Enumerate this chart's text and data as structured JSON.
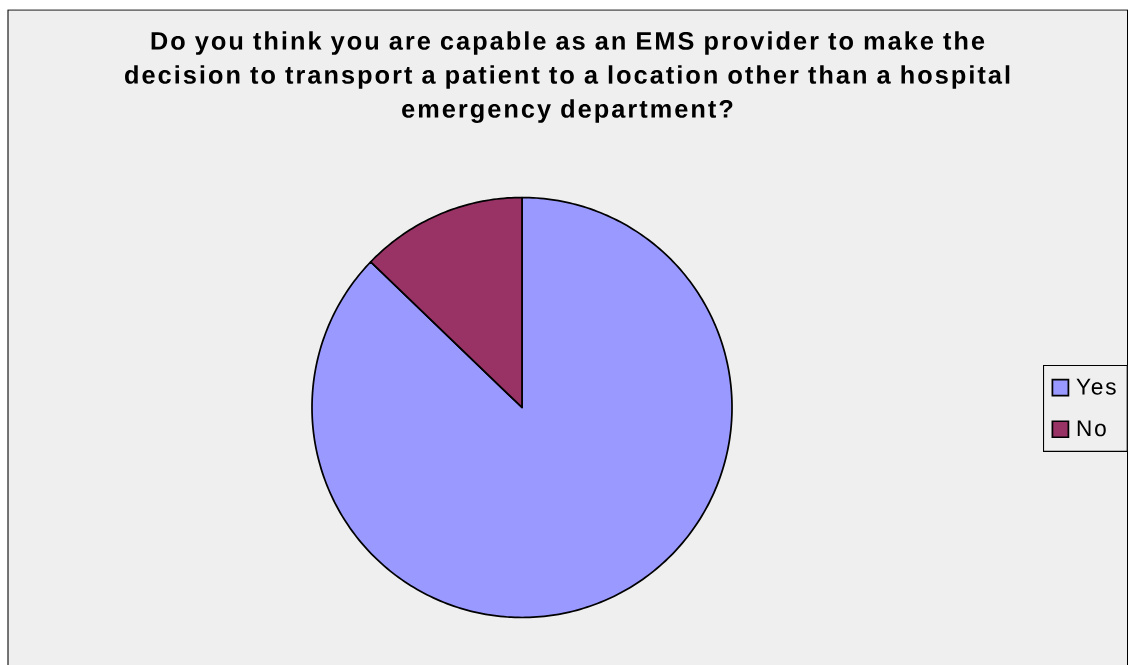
{
  "chart_data": {
    "type": "pie",
    "title": "Do you think you are capable as an EMS provider to make the decision to transport a patient to a location other than a hospital emergency department?",
    "categories": [
      "Yes",
      "No"
    ],
    "values": [
      87.2,
      12.8
    ],
    "colors": [
      "#9999ff",
      "#993366"
    ],
    "legend": "right"
  }
}
